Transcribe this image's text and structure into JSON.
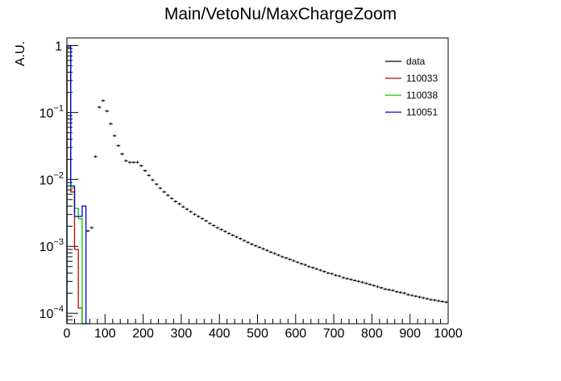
{
  "chart_data": {
    "type": "histogram",
    "title": "Main/VetoNu/MaxChargeZoom",
    "xlabel": "",
    "ylabel": "A.U.",
    "xlim": [
      0,
      1000
    ],
    "ylim": [
      7e-05,
      1.3
    ],
    "y_scale": "log",
    "grid": false,
    "legend_position": "top-right",
    "x_ticks": [
      {
        "value": 0,
        "label": "0"
      },
      {
        "value": 100,
        "label": "100"
      },
      {
        "value": 200,
        "label": "200"
      },
      {
        "value": 300,
        "label": "300"
      },
      {
        "value": 400,
        "label": "400"
      },
      {
        "value": 500,
        "label": "500"
      },
      {
        "value": 600,
        "label": "600"
      },
      {
        "value": 700,
        "label": "700"
      },
      {
        "value": 800,
        "label": "800"
      },
      {
        "value": 900,
        "label": "900"
      },
      {
        "value": 1000,
        "label": "1000"
      }
    ],
    "y_ticks": [
      {
        "value": 1,
        "base": "1",
        "exp": ""
      },
      {
        "value": 0.1,
        "base": "10",
        "exp": "−1"
      },
      {
        "value": 0.01,
        "base": "10",
        "exp": "−2"
      },
      {
        "value": 0.001,
        "base": "10",
        "exp": "−3"
      },
      {
        "value": 0.0001,
        "base": "10",
        "exp": "−4"
      }
    ],
    "bin_width": 10,
    "series": [
      {
        "name": "data",
        "color": "#000000",
        "style": "markers",
        "x": [
          75,
          85,
          95,
          105,
          115,
          125,
          135,
          145,
          155,
          165,
          175,
          185,
          195,
          205,
          215,
          225,
          235,
          245,
          255,
          265,
          275,
          285,
          295,
          305,
          315,
          325,
          335,
          345,
          355,
          365,
          375,
          385,
          395,
          405,
          415,
          425,
          435,
          445,
          455,
          465,
          475,
          485,
          495,
          505,
          515,
          525,
          535,
          545,
          555,
          565,
          575,
          585,
          595,
          605,
          615,
          625,
          635,
          645,
          655,
          665,
          675,
          685,
          695,
          705,
          715,
          725,
          735,
          745,
          755,
          765,
          775,
          785,
          795,
          805,
          815,
          825,
          835,
          845,
          855,
          865,
          875,
          885,
          895,
          905,
          915,
          925,
          935,
          945,
          955,
          965,
          975,
          985,
          995
        ],
        "y": [
          0.022,
          0.12,
          0.15,
          0.105,
          0.068,
          0.045,
          0.032,
          0.024,
          0.019,
          0.018,
          0.018,
          0.018,
          0.016,
          0.0135,
          0.0115,
          0.0098,
          0.0085,
          0.0074,
          0.0065,
          0.0058,
          0.0052,
          0.0047,
          0.0043,
          0.0039,
          0.0036,
          0.0033,
          0.003,
          0.0028,
          0.0026,
          0.0024,
          0.0022,
          0.00205,
          0.0019,
          0.00178,
          0.00167,
          0.00156,
          0.00147,
          0.00138,
          0.0013,
          0.00122,
          0.00115,
          0.00108,
          0.00102,
          0.00097,
          0.00092,
          0.00087,
          0.00082,
          0.00078,
          0.00074,
          0.0007,
          0.00067,
          0.00064,
          0.00061,
          0.00058,
          0.00055,
          0.00053,
          0.0005,
          0.00048,
          0.00046,
          0.00044,
          0.00042,
          0.0004,
          0.00039,
          0.00037,
          0.00036,
          0.00034,
          0.00033,
          0.00032,
          0.00031,
          0.0003,
          0.00029,
          0.00028,
          0.00027,
          0.00026,
          0.00025,
          0.00024,
          0.00023,
          0.000225,
          0.00022,
          0.00021,
          0.000205,
          0.0002,
          0.00019,
          0.000185,
          0.00018,
          0.000175,
          0.00017,
          0.000165,
          0.00016,
          0.000157,
          0.000153,
          0.00015,
          0.000147
        ]
      },
      {
        "name": "",
        "color": "#000000",
        "style": "markers",
        "x": [
          55,
          65
        ],
        "y": [
          0.0017,
          0.0019
        ]
      },
      {
        "name": "110033",
        "color": "#cc0000",
        "style": "step",
        "x": [
          0,
          10,
          20,
          30,
          40
        ],
        "y": [
          0.95,
          0.0065,
          0.0009,
          0.00012,
          7e-05
        ]
      },
      {
        "name": "110038",
        "color": "#00cc00",
        "style": "step",
        "x": [
          0,
          10,
          20,
          30,
          40
        ],
        "y": [
          0.92,
          0.0075,
          0.0037,
          0.0026,
          7e-05
        ]
      },
      {
        "name": "110051",
        "color": "#0000cc",
        "style": "step",
        "x": [
          0,
          10,
          20,
          30,
          40,
          50
        ],
        "y": [
          1.0,
          0.008,
          0.0028,
          0.0028,
          0.004,
          7e-05
        ]
      }
    ]
  }
}
